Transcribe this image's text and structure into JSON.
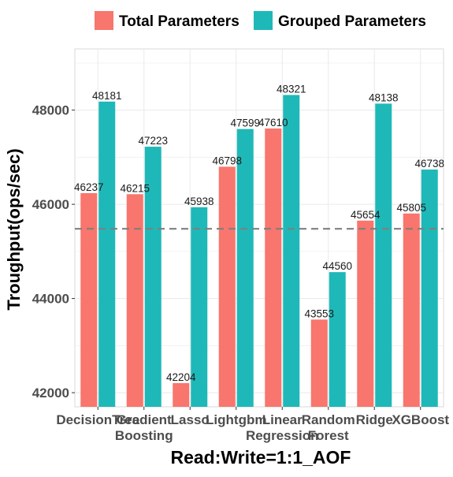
{
  "colors": {
    "total": "#F8766D",
    "grouped": "#1FB8B8",
    "grid": "#EBEBEB",
    "panel_border": "#D9D9D9",
    "reference_line": "#7F7F7F",
    "text": "#1A1A1A",
    "axis_text": "#4D4D4D"
  },
  "chart_data": {
    "type": "bar",
    "title": "",
    "xlabel": "Read:Write=1:1_AOF",
    "ylabel": "Troughput(ops/sec)",
    "ylim": [
      41700,
      49300
    ],
    "yticks": [
      42000,
      44000,
      46000,
      48000
    ],
    "grid": true,
    "legend_position": "top",
    "categories": [
      [
        "DecisionTree"
      ],
      [
        "Gradient",
        "Boosting"
      ],
      [
        "Lasso"
      ],
      [
        "Lightgbm"
      ],
      [
        "Linear",
        "Regression"
      ],
      [
        "Random",
        "Forest"
      ],
      [
        "Ridge"
      ],
      [
        "XGBoost"
      ]
    ],
    "series": [
      {
        "name": "Total Parameters",
        "color": "#F8766D",
        "values": [
          46237,
          46215,
          42204,
          46798,
          47610,
          43553,
          45654,
          45805
        ]
      },
      {
        "name": "Grouped Parameters",
        "color": "#1FB8B8",
        "values": [
          48181,
          47223,
          45938,
          47599,
          48321,
          44560,
          48138,
          46738
        ]
      }
    ],
    "reference_line": {
      "y": 45480,
      "style": "dashed"
    }
  }
}
